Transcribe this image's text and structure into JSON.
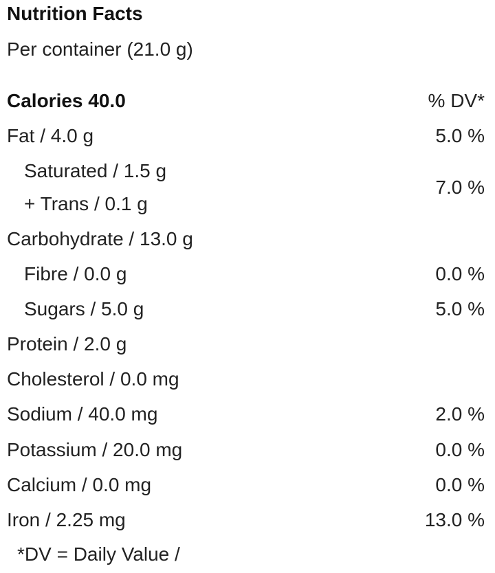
{
  "panel": {
    "title": "Nutrition Facts",
    "serving": "Per container (21.0 g)"
  },
  "header": {
    "calories": "Calories 40.0",
    "dv_heading": "% DV*"
  },
  "rows": {
    "fat": {
      "label": "Fat / 4.0 g",
      "dv": "5.0 %"
    },
    "fats": {
      "saturated": "Saturated / 1.5 g",
      "trans": "+ Trans / 0.1 g",
      "dv": "7.0 %"
    },
    "carbohydrate": {
      "label": "Carbohydrate / 13.0 g",
      "dv": ""
    },
    "fibre": {
      "label": "Fibre / 0.0 g",
      "dv": "0.0 %"
    },
    "sugars": {
      "label": "Sugars / 5.0 g",
      "dv": "5.0 %"
    },
    "protein": {
      "label": "Protein / 2.0 g",
      "dv": ""
    },
    "cholesterol": {
      "label": "Cholesterol / 0.0 mg",
      "dv": ""
    },
    "sodium": {
      "label": "Sodium / 40.0 mg",
      "dv": "2.0 %"
    },
    "potassium": {
      "label": "Potassium / 20.0 mg",
      "dv": "0.0 %"
    },
    "calcium": {
      "label": "Calcium / 0.0 mg",
      "dv": "0.0 %"
    },
    "iron": {
      "label": "Iron / 2.25 mg",
      "dv": "13.0 %"
    }
  },
  "footnote": "*DV = Daily Value /"
}
